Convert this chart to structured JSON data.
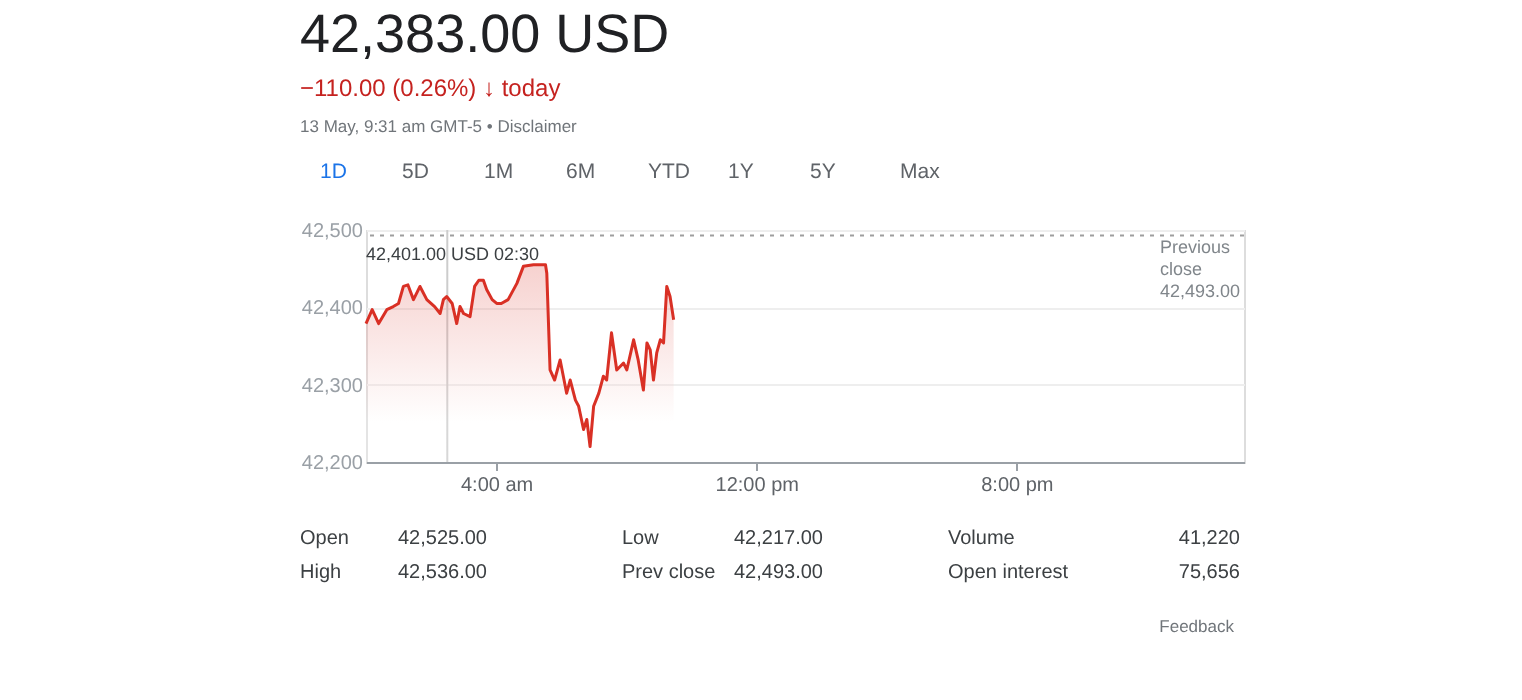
{
  "chart_data": {
    "type": "area",
    "title": "42,383.00 USD",
    "subtitle": "−110.00 (0.26%) ↓ today",
    "annotations": [
      "13 May, 9:31 am GMT-5 • Disclaimer",
      "1D",
      "5D",
      "1M",
      "6M",
      "YTD",
      "1Y",
      "5Y",
      "Max",
      "Open",
      "42,525.00",
      "Low",
      "42,217.00",
      "Volume",
      "41,220",
      "High",
      "42,536.00",
      "Prev close",
      "42,493.00",
      "Open interest",
      "75,656",
      "Feedback",
      "42,401.00 USD 02:30"
    ],
    "x": [
      0.0,
      0.19,
      0.39,
      0.64,
      0.84,
      1.0,
      1.15,
      1.29,
      1.46,
      1.66,
      1.87,
      2.11,
      2.28,
      2.38,
      2.48,
      2.65,
      2.79,
      2.89,
      3.0,
      3.2,
      3.34,
      3.47,
      3.61,
      3.71,
      3.88,
      4.02,
      4.16,
      4.37,
      4.64,
      4.84,
      5.15,
      5.52,
      5.56,
      5.66,
      5.8,
      5.97,
      6.17,
      6.28,
      6.44,
      6.54,
      6.69,
      6.79,
      6.89,
      7.0,
      7.16,
      7.3,
      7.4,
      7.55,
      7.71,
      7.92,
      8.02,
      8.23,
      8.37,
      8.53,
      8.64,
      8.74,
      8.84,
      8.94,
      9.05,
      9.15,
      9.25,
      9.35,
      9.46
    ],
    "series": [
      {
        "color": "#d93025",
        "values": [
          42379,
          42397,
          42379,
          42397,
          42401,
          42405,
          42427,
          42429,
          42410,
          42427,
          42410,
          42401,
          42392,
          42410,
          42414,
          42405,
          42379,
          42401,
          42392,
          42388,
          42427,
          42435,
          42435,
          42423,
          42410,
          42405,
          42405,
          42410,
          42431,
          42453,
          42455,
          42455,
          42444,
          42319,
          42306,
          42332,
          42289,
          42306,
          42280,
          42272,
          42242,
          42255,
          42220,
          42272,
          42289,
          42311,
          42306,
          42367,
          42319,
          42328,
          42319,
          42358,
          42332,
          42293,
          42354,
          42345,
          42306,
          42341,
          42358,
          42354,
          42427,
          42414,
          42384
        ]
      }
    ],
    "xlim": [
      0,
      27
    ],
    "xticks": [
      {
        "value": 4,
        "label": "4:00 am"
      },
      {
        "value": 12,
        "label": "12:00 pm"
      },
      {
        "value": 20,
        "label": "8:00 pm"
      }
    ],
    "ylim": [
      42200,
      42500
    ],
    "yticks": [
      {
        "value": 42200,
        "label": "42,200"
      },
      {
        "value": 42300,
        "label": "42,300"
      },
      {
        "value": 42400,
        "label": "42,400"
      },
      {
        "value": 42500,
        "label": "42,500"
      }
    ],
    "grid": "y",
    "ref_lines": [
      {
        "axis": "y",
        "value": 42493,
        "label": "Previous close 42,493.00",
        "line_style": "dotted",
        "color": "#9e9e9e"
      },
      {
        "axis": "x",
        "value": 2.5,
        "color": "#cccccc"
      }
    ]
  }
}
